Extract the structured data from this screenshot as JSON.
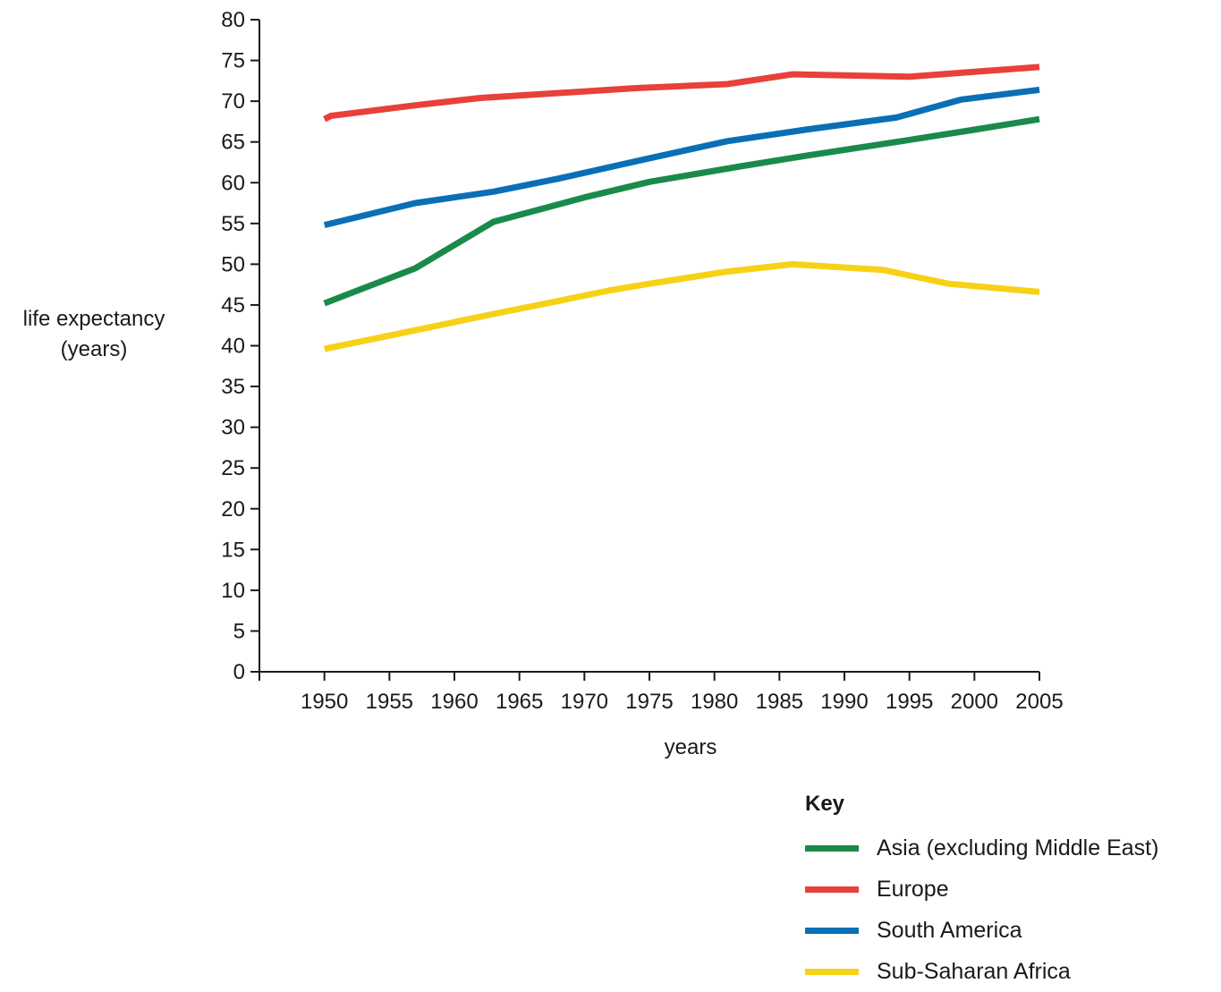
{
  "chart_data": {
    "type": "line",
    "xlabel": "years",
    "ylabel": [
      "life expectancy",
      "(years)"
    ],
    "x_ticks": [
      1950,
      1955,
      1960,
      1965,
      1970,
      1975,
      1980,
      1985,
      1990,
      1995,
      2000,
      2005
    ],
    "y_ticks": [
      0,
      5,
      10,
      15,
      20,
      25,
      30,
      35,
      40,
      45,
      50,
      55,
      60,
      65,
      70,
      75,
      80
    ],
    "xlim": [
      1945,
      2005
    ],
    "ylim": [
      0,
      80
    ],
    "grid": false,
    "legend_title": "Key",
    "legend_placement": "bottom-right",
    "series": [
      {
        "name": "Asia (excluding Middle East)",
        "color": "#1a8a4a",
        "x": [
          1950,
          1957,
          1963,
          1970,
          1975,
          1982,
          1987,
          1994,
          2000,
          2005
        ],
        "y": [
          45.2,
          49.5,
          55.2,
          58.2,
          60.1,
          62.0,
          63.3,
          65.0,
          66.5,
          67.8
        ]
      },
      {
        "name": "Europe",
        "color": "#e8403a",
        "x": [
          1950,
          1950.5,
          1957,
          1962,
          1968,
          1974,
          1981,
          1986,
          1995,
          2000,
          2005
        ],
        "y": [
          67.8,
          68.2,
          69.5,
          70.4,
          71.0,
          71.6,
          72.1,
          73.3,
          73.0,
          73.6,
          74.2
        ]
      },
      {
        "name": "South America",
        "color": "#0a6fb5",
        "x": [
          1950,
          1957,
          1963,
          1968,
          1975,
          1981,
          1987,
          1994,
          1999,
          2005
        ],
        "y": [
          54.8,
          57.5,
          58.9,
          60.5,
          63.0,
          65.1,
          66.5,
          68.0,
          70.2,
          71.4
        ]
      },
      {
        "name": "Sub-Saharan Africa",
        "color": "#f7d117",
        "x": [
          1950,
          1957,
          1963,
          1968,
          1972,
          1975,
          1981,
          1986,
          1993,
          1998,
          2005
        ],
        "y": [
          39.6,
          41.9,
          43.9,
          45.5,
          46.8,
          47.6,
          49.1,
          50.0,
          49.3,
          47.6,
          46.6
        ]
      }
    ]
  }
}
